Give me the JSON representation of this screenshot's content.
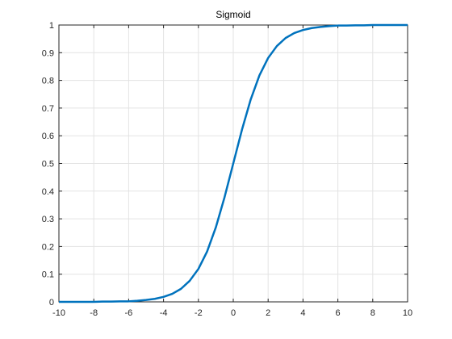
{
  "chart_data": {
    "type": "line",
    "title": "Sigmoid",
    "x": [
      -10,
      -9.5,
      -9,
      -8.5,
      -8,
      -7.5,
      -7,
      -6.5,
      -6,
      -5.5,
      -5,
      -4.5,
      -4,
      -3.5,
      -3,
      -2.5,
      -2,
      -1.5,
      -1,
      -0.5,
      0,
      0.5,
      1,
      1.5,
      2,
      2.5,
      3,
      3.5,
      4,
      4.5,
      5,
      5.5,
      6,
      6.5,
      7,
      7.5,
      8,
      8.5,
      9,
      9.5,
      10
    ],
    "series": [
      {
        "color": "#0072bd",
        "values": [
          0,
          0,
          0,
          0,
          0,
          0.001,
          0.001,
          0.002,
          0.002,
          0.004,
          0.007,
          0.011,
          0.018,
          0.029,
          0.047,
          0.076,
          0.119,
          0.182,
          0.269,
          0.378,
          0.5,
          0.622,
          0.731,
          0.818,
          0.881,
          0.924,
          0.953,
          0.971,
          0.982,
          0.989,
          0.993,
          0.996,
          0.998,
          0.998,
          0.999,
          0.999,
          1,
          1,
          1,
          1,
          1
        ]
      }
    ],
    "xlim": [
      -10,
      10
    ],
    "xticks": [
      -10,
      -8,
      -6,
      -4,
      -2,
      0,
      2,
      4,
      6,
      8,
      10
    ],
    "ylim": [
      0,
      1
    ],
    "yticks": [
      0,
      0.1,
      0.2,
      0.3,
      0.4,
      0.5,
      0.6,
      0.7,
      0.8,
      0.9,
      1
    ],
    "grid": true
  }
}
